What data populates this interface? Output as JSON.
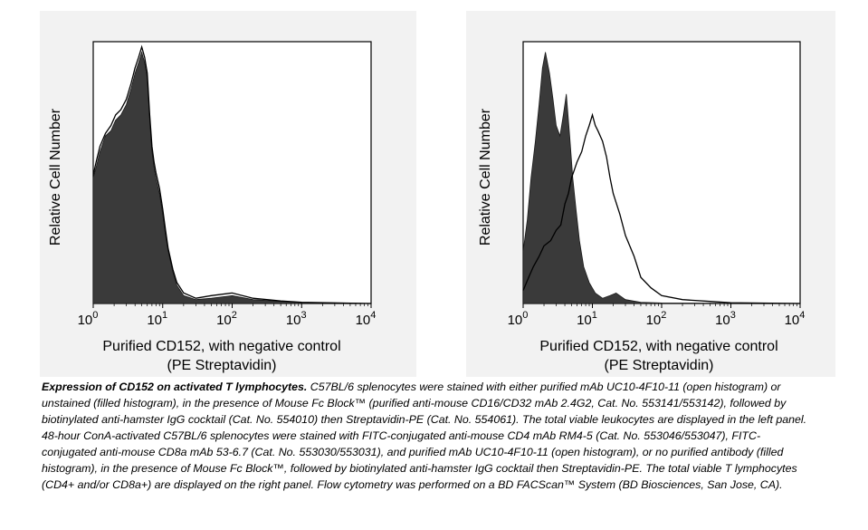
{
  "chart_data": [
    {
      "type": "area",
      "panel": "left",
      "ylabel": "Relative Cell Number",
      "xlabel_line1": "Purified CD152, with negative control",
      "xlabel_line2": "(PE Streptavidin)",
      "xscale": "log",
      "xlim": [
        1,
        10000
      ],
      "ylim": [
        0,
        100
      ],
      "xticks": [
        {
          "base": "10",
          "exp": "0"
        },
        {
          "base": "10",
          "exp": "1"
        },
        {
          "base": "10",
          "exp": "2"
        },
        {
          "base": "10",
          "exp": "3"
        },
        {
          "base": "10",
          "exp": "4"
        }
      ],
      "grid": false,
      "series": [
        {
          "style": "filled",
          "color": "#3a3a3a",
          "x": [
            1,
            1.1,
            1.25,
            1.5,
            1.8,
            2.1,
            2.5,
            3.0,
            3.5,
            4.0,
            4.5,
            5.0,
            5.5,
            6.0,
            6.5,
            7.0,
            7.5,
            8.0,
            9.0,
            10,
            11,
            12,
            14,
            16,
            20,
            30,
            50,
            100,
            200,
            500,
            1000,
            10000
          ],
          "y": [
            48,
            52,
            58,
            64,
            66,
            70,
            72,
            76,
            82,
            88,
            92,
            96,
            92,
            86,
            70,
            58,
            52,
            48,
            42,
            34,
            26,
            20,
            12,
            7,
            3,
            1.5,
            2,
            3,
            1.5,
            0.8,
            0.4,
            0
          ]
        },
        {
          "style": "open",
          "color": "#000000",
          "x": [
            1,
            1.1,
            1.25,
            1.5,
            1.8,
            2.1,
            2.5,
            3.0,
            3.5,
            4.0,
            4.5,
            5.0,
            5.5,
            6.0,
            6.5,
            7.0,
            7.5,
            8.0,
            9.0,
            10,
            11,
            12,
            14,
            16,
            20,
            30,
            50,
            100,
            200,
            500,
            1000,
            10000
          ],
          "y": [
            49,
            54,
            60,
            65,
            68,
            72,
            74,
            78,
            84,
            90,
            94,
            98,
            94,
            88,
            72,
            60,
            54,
            50,
            44,
            36,
            28,
            21,
            13,
            8,
            4,
            2,
            3,
            4,
            2,
            1,
            0.5,
            0
          ]
        }
      ]
    },
    {
      "type": "area",
      "panel": "right",
      "ylabel": "Relative Cell Number",
      "xlabel_line1": "Purified CD152, with negative control",
      "xlabel_line2": "(PE Streptavidin)",
      "xscale": "log",
      "xlim": [
        1,
        10000
      ],
      "ylim": [
        0,
        100
      ],
      "xticks": [
        {
          "base": "10",
          "exp": "0"
        },
        {
          "base": "10",
          "exp": "1"
        },
        {
          "base": "10",
          "exp": "2"
        },
        {
          "base": "10",
          "exp": "3"
        },
        {
          "base": "10",
          "exp": "4"
        }
      ],
      "grid": false,
      "series": [
        {
          "style": "filled",
          "color": "#3a3a3a",
          "x": [
            1,
            1.15,
            1.3,
            1.5,
            1.7,
            1.9,
            2.1,
            2.4,
            2.7,
            3.0,
            3.4,
            3.8,
            4.2,
            4.7,
            5.2,
            5.8,
            6.5,
            7.5,
            9.0,
            11,
            14,
            18,
            22,
            30,
            50,
            100,
            10000
          ],
          "y": [
            20,
            32,
            48,
            62,
            76,
            90,
            96,
            88,
            78,
            68,
            64,
            72,
            80,
            64,
            48,
            36,
            24,
            14,
            8,
            4,
            2,
            3,
            4,
            1.5,
            0.5,
            0.2,
            0
          ]
        },
        {
          "style": "open",
          "color": "#000000",
          "x": [
            1,
            1.2,
            1.4,
            1.7,
            2.0,
            2.5,
            3.0,
            3.5,
            4.0,
            4.5,
            5.0,
            6.0,
            7.0,
            8.0,
            9.0,
            10,
            11,
            12,
            14,
            16,
            18,
            20,
            25,
            30,
            40,
            50,
            70,
            100,
            200,
            500,
            1000,
            10000
          ],
          "y": [
            5,
            10,
            14,
            18,
            22,
            24,
            28,
            30,
            38,
            42,
            48,
            54,
            58,
            64,
            68,
            72,
            68,
            66,
            62,
            56,
            48,
            42,
            34,
            26,
            18,
            10,
            6,
            3,
            1.5,
            0.8,
            0.3,
            0
          ]
        }
      ]
    }
  ],
  "caption": {
    "title": "Expression of CD152 on activated T lymphocytes.",
    "body": "C57BL/6 splenocytes were stained with either purified mAb UC10-4F10-11 (open histogram) or unstained (filled histogram), in the presence of Mouse Fc Block™ (purified anti-mouse CD16/CD32 mAb 2.4G2, Cat. No. 553141/553142), followed by biotinylated anti-hamster IgG cocktail (Cat. No. 554010) then Streptavidin-PE (Cat. No. 554061). The total viable leukocytes are displayed in the left panel. 48-hour ConA-activated C57BL/6 splenocytes were stained with FITC-conjugated anti-mouse CD4 mAb RM4-5 (Cat. No. 553046/553047), FITC-conjugated anti-mouse CD8a mAb 53-6.7 (Cat. No. 553030/553031), and purified mAb UC10-4F10-11 (open histogram), or no purified antibody (filled histogram), in the presence of Mouse Fc Block™, followed by biotinylated anti-hamster IgG cocktail then Streptavidin-PE. The total viable T lymphocytes (CD4+ and/or CD8a+) are displayed on the right panel. Flow cytometry was performed on a BD FACScan™ System (BD Biosciences, San Jose, CA)."
  }
}
